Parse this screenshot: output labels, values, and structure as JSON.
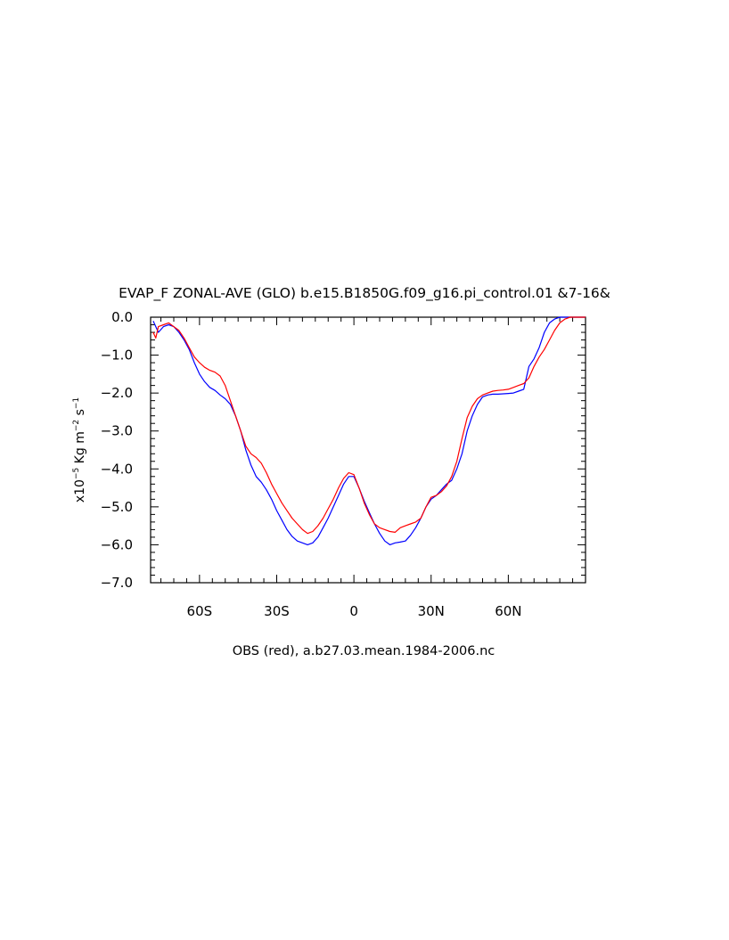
{
  "chart_data": {
    "type": "line",
    "title": "EVAP_F ZONAL-AVE (GLO) b.e15.B1850G.f09_g16.pi_control.01 &7-16&",
    "xlabel": "OBS (red), a.b27.03.mean.1984-2006.nc",
    "ylabel": "x10⁻⁵ Kg m⁻² s⁻¹",
    "ylabel_parts": {
      "a": "x10",
      "b": "−5",
      "c": " Kg m",
      "d": "−2",
      "e": " s",
      "f": "−1"
    },
    "xlim": [
      -79,
      90
    ],
    "ylim": [
      -7.0,
      0.0
    ],
    "x_ticks": [
      {
        "value": -60,
        "label": "60S"
      },
      {
        "value": -30,
        "label": "30S"
      },
      {
        "value": 0,
        "label": "0"
      },
      {
        "value": 30,
        "label": "30N"
      },
      {
        "value": 60,
        "label": "60N"
      }
    ],
    "y_ticks": [
      {
        "value": 0.0,
        "label": "0.0"
      },
      {
        "value": -1.0,
        "label": "−1.0"
      },
      {
        "value": -2.0,
        "label": "−2.0"
      },
      {
        "value": -3.0,
        "label": "−3.0"
      },
      {
        "value": -4.0,
        "label": "−4.0"
      },
      {
        "value": -5.0,
        "label": "−5.0"
      },
      {
        "value": -6.0,
        "label": "−6.0"
      },
      {
        "value": -7.0,
        "label": "−7.0"
      }
    ],
    "series": [
      {
        "color": "#0000ff",
        "points": [
          [
            -78,
            -0.1
          ],
          [
            -76,
            -0.4
          ],
          [
            -74,
            -0.25
          ],
          [
            -72,
            -0.2
          ],
          [
            -70,
            -0.25
          ],
          [
            -68,
            -0.4
          ],
          [
            -66,
            -0.6
          ],
          [
            -64,
            -0.85
          ],
          [
            -62,
            -1.2
          ],
          [
            -60,
            -1.5
          ],
          [
            -58,
            -1.7
          ],
          [
            -56,
            -1.85
          ],
          [
            -54,
            -1.93
          ],
          [
            -52,
            -2.05
          ],
          [
            -50,
            -2.15
          ],
          [
            -48,
            -2.3
          ],
          [
            -46,
            -2.6
          ],
          [
            -44,
            -3.0
          ],
          [
            -42,
            -3.5
          ],
          [
            -40,
            -3.9
          ],
          [
            -38,
            -4.2
          ],
          [
            -36,
            -4.35
          ],
          [
            -34,
            -4.55
          ],
          [
            -32,
            -4.8
          ],
          [
            -30,
            -5.1
          ],
          [
            -28,
            -5.35
          ],
          [
            -26,
            -5.6
          ],
          [
            -24,
            -5.78
          ],
          [
            -22,
            -5.9
          ],
          [
            -20,
            -5.95
          ],
          [
            -18,
            -6.0
          ],
          [
            -16,
            -5.95
          ],
          [
            -14,
            -5.8
          ],
          [
            -12,
            -5.55
          ],
          [
            -10,
            -5.3
          ],
          [
            -8,
            -5.0
          ],
          [
            -6,
            -4.7
          ],
          [
            -4,
            -4.4
          ],
          [
            -2,
            -4.2
          ],
          [
            0,
            -4.2
          ],
          [
            2,
            -4.5
          ],
          [
            4,
            -4.85
          ],
          [
            6,
            -5.15
          ],
          [
            8,
            -5.45
          ],
          [
            10,
            -5.7
          ],
          [
            12,
            -5.9
          ],
          [
            14,
            -6.0
          ],
          [
            16,
            -5.95
          ],
          [
            18,
            -5.93
          ],
          [
            20,
            -5.9
          ],
          [
            22,
            -5.75
          ],
          [
            24,
            -5.55
          ],
          [
            26,
            -5.3
          ],
          [
            28,
            -5.0
          ],
          [
            30,
            -4.8
          ],
          [
            32,
            -4.7
          ],
          [
            34,
            -4.55
          ],
          [
            36,
            -4.4
          ],
          [
            38,
            -4.3
          ],
          [
            40,
            -4.0
          ],
          [
            42,
            -3.6
          ],
          [
            44,
            -3.0
          ],
          [
            46,
            -2.6
          ],
          [
            48,
            -2.3
          ],
          [
            50,
            -2.1
          ],
          [
            52,
            -2.05
          ],
          [
            54,
            -2.03
          ],
          [
            56,
            -2.03
          ],
          [
            58,
            -2.02
          ],
          [
            60,
            -2.01
          ],
          [
            62,
            -2.0
          ],
          [
            64,
            -1.95
          ],
          [
            66,
            -1.9
          ],
          [
            67,
            -1.6
          ],
          [
            68,
            -1.3
          ],
          [
            70,
            -1.1
          ],
          [
            72,
            -0.8
          ],
          [
            74,
            -0.4
          ],
          [
            76,
            -0.15
          ],
          [
            78,
            -0.05
          ],
          [
            80,
            0.0
          ],
          [
            82,
            0.0
          ],
          [
            90,
            0.0
          ]
        ]
      },
      {
        "color": "#ff0000",
        "points": [
          [
            -78,
            -0.4
          ],
          [
            -77,
            -0.55
          ],
          [
            -76,
            -0.25
          ],
          [
            -74,
            -0.2
          ],
          [
            -72,
            -0.15
          ],
          [
            -70,
            -0.25
          ],
          [
            -68,
            -0.35
          ],
          [
            -66,
            -0.55
          ],
          [
            -64,
            -0.8
          ],
          [
            -62,
            -1.05
          ],
          [
            -60,
            -1.2
          ],
          [
            -58,
            -1.32
          ],
          [
            -56,
            -1.4
          ],
          [
            -54,
            -1.45
          ],
          [
            -52,
            -1.55
          ],
          [
            -50,
            -1.8
          ],
          [
            -48,
            -2.2
          ],
          [
            -46,
            -2.6
          ],
          [
            -44,
            -3.0
          ],
          [
            -42,
            -3.4
          ],
          [
            -40,
            -3.6
          ],
          [
            -38,
            -3.7
          ],
          [
            -36,
            -3.85
          ],
          [
            -34,
            -4.1
          ],
          [
            -32,
            -4.4
          ],
          [
            -30,
            -4.65
          ],
          [
            -28,
            -4.9
          ],
          [
            -26,
            -5.1
          ],
          [
            -24,
            -5.3
          ],
          [
            -22,
            -5.45
          ],
          [
            -20,
            -5.6
          ],
          [
            -18,
            -5.7
          ],
          [
            -16,
            -5.65
          ],
          [
            -14,
            -5.5
          ],
          [
            -12,
            -5.3
          ],
          [
            -10,
            -5.05
          ],
          [
            -8,
            -4.8
          ],
          [
            -6,
            -4.5
          ],
          [
            -4,
            -4.25
          ],
          [
            -2,
            -4.1
          ],
          [
            0,
            -4.15
          ],
          [
            2,
            -4.5
          ],
          [
            4,
            -4.9
          ],
          [
            6,
            -5.2
          ],
          [
            8,
            -5.45
          ],
          [
            10,
            -5.55
          ],
          [
            12,
            -5.6
          ],
          [
            14,
            -5.65
          ],
          [
            16,
            -5.67
          ],
          [
            18,
            -5.55
          ],
          [
            20,
            -5.5
          ],
          [
            22,
            -5.45
          ],
          [
            24,
            -5.4
          ],
          [
            26,
            -5.3
          ],
          [
            28,
            -5.0
          ],
          [
            30,
            -4.75
          ],
          [
            32,
            -4.7
          ],
          [
            34,
            -4.6
          ],
          [
            36,
            -4.45
          ],
          [
            38,
            -4.2
          ],
          [
            40,
            -3.8
          ],
          [
            42,
            -3.2
          ],
          [
            44,
            -2.65
          ],
          [
            46,
            -2.35
          ],
          [
            48,
            -2.15
          ],
          [
            50,
            -2.05
          ],
          [
            52,
            -2.0
          ],
          [
            54,
            -1.95
          ],
          [
            56,
            -1.93
          ],
          [
            58,
            -1.92
          ],
          [
            60,
            -1.9
          ],
          [
            62,
            -1.85
          ],
          [
            64,
            -1.8
          ],
          [
            66,
            -1.75
          ],
          [
            68,
            -1.6
          ],
          [
            70,
            -1.3
          ],
          [
            72,
            -1.05
          ],
          [
            74,
            -0.85
          ],
          [
            76,
            -0.6
          ],
          [
            78,
            -0.35
          ],
          [
            80,
            -0.15
          ],
          [
            82,
            -0.05
          ],
          [
            84,
            0.0
          ],
          [
            90,
            0.0
          ]
        ]
      }
    ]
  }
}
